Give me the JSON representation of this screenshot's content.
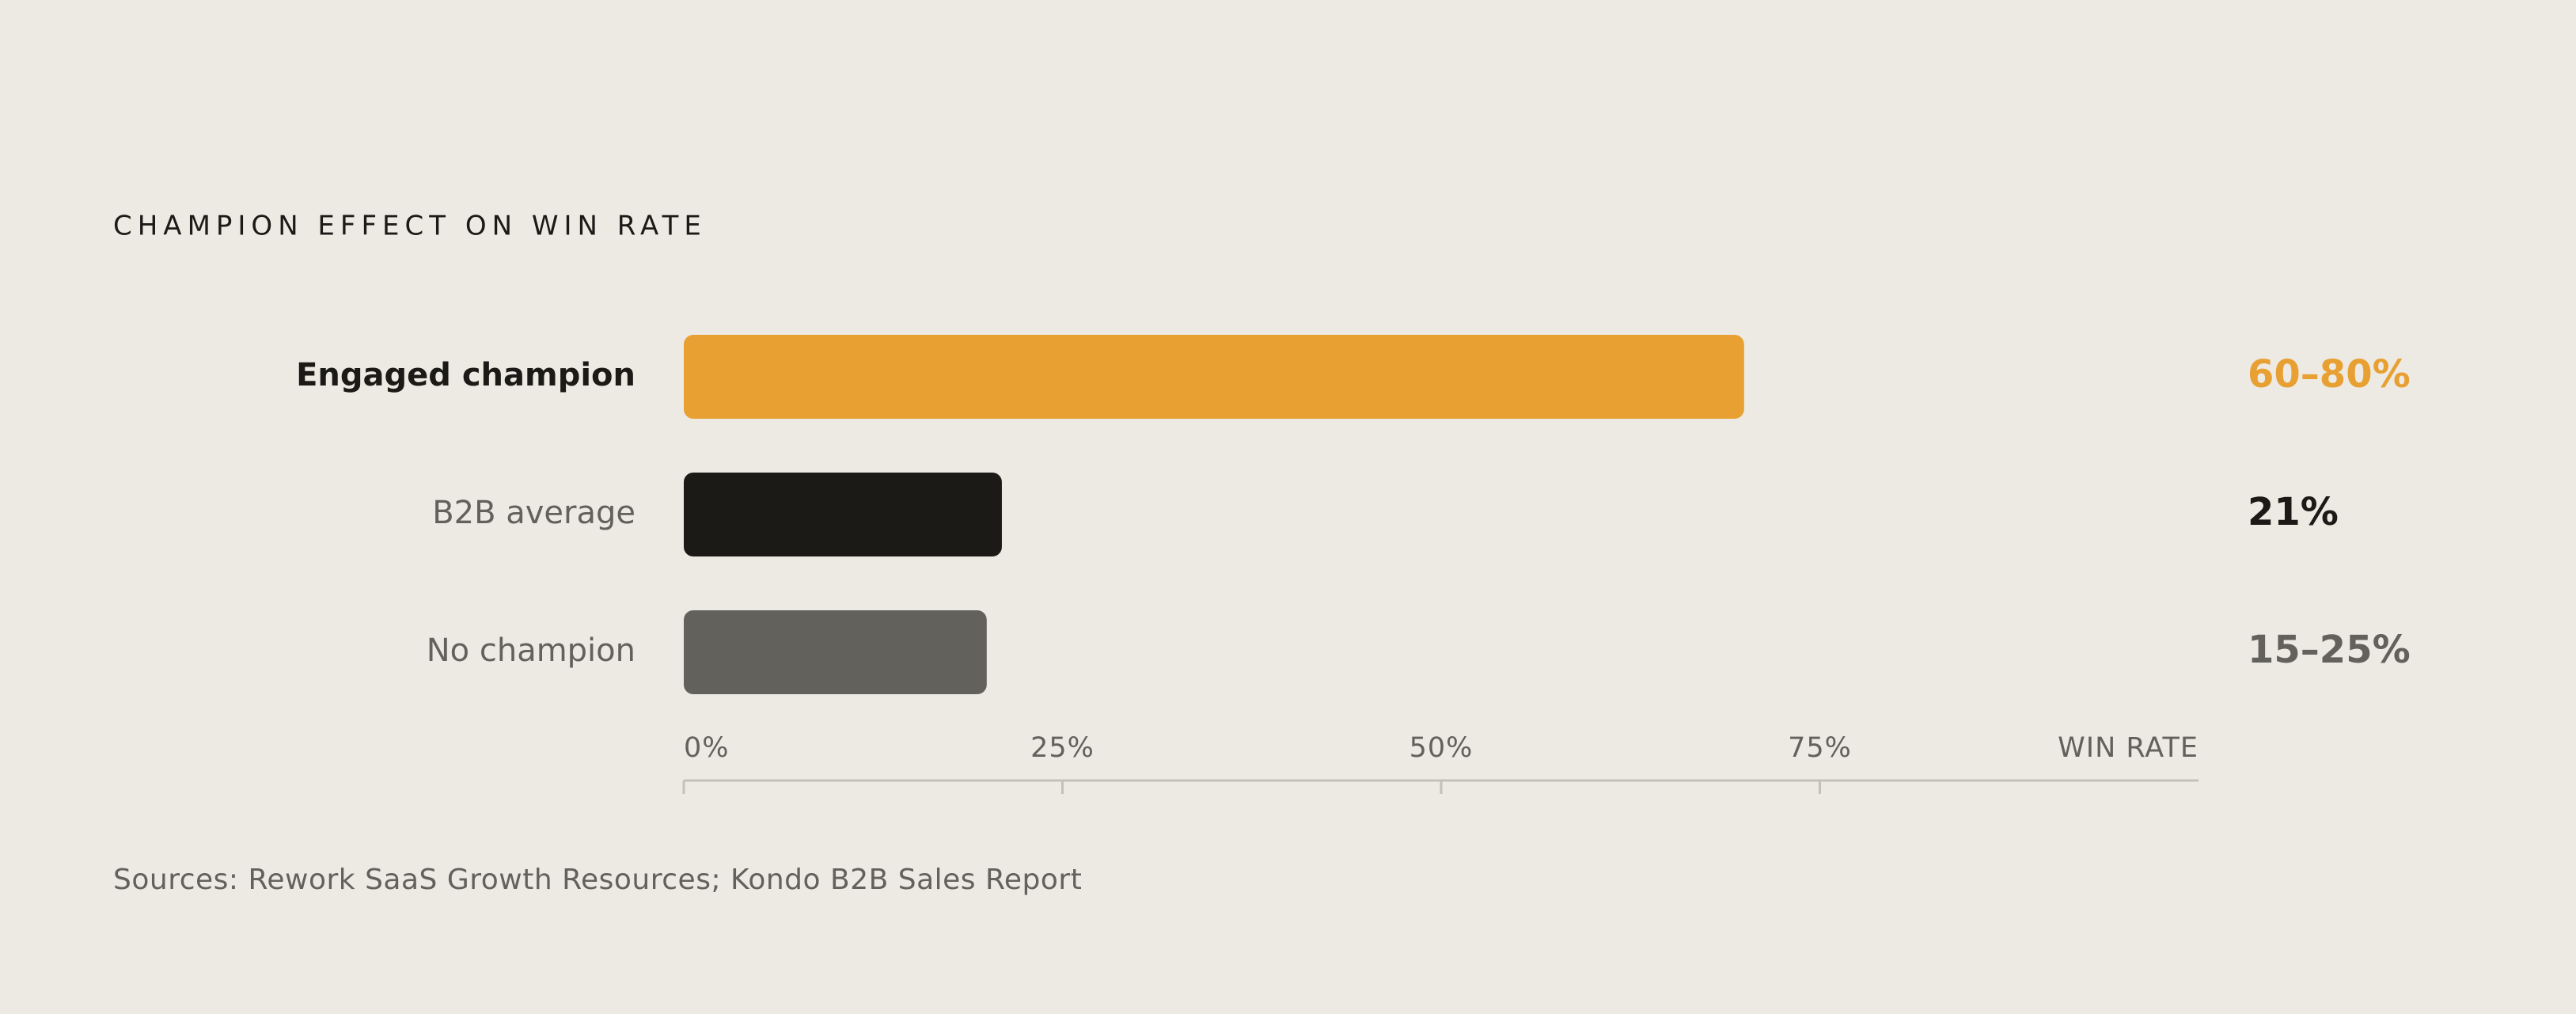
{
  "chart_data": {
    "type": "bar",
    "orientation": "horizontal",
    "title": "CHAMPION EFFECT ON WIN RATE",
    "categories": [
      "Engaged champion",
      "B2B average",
      "No champion"
    ],
    "values": [
      70,
      21,
      20
    ],
    "value_labels": [
      "60–80%",
      "21%",
      "15–25%"
    ],
    "colors": [
      "#e8a033",
      "#1c1a17",
      "#63615b"
    ],
    "xlabel": "WIN RATE",
    "xlim": [
      0,
      100
    ],
    "xticks": [
      {
        "value": 0,
        "label": "0%"
      },
      {
        "value": 25,
        "label": "25%"
      },
      {
        "value": 50,
        "label": "50%"
      },
      {
        "value": 75,
        "label": "75%"
      }
    ],
    "source": "Sources: Rework SaaS Growth Resources; Kondo B2B Sales Report"
  }
}
